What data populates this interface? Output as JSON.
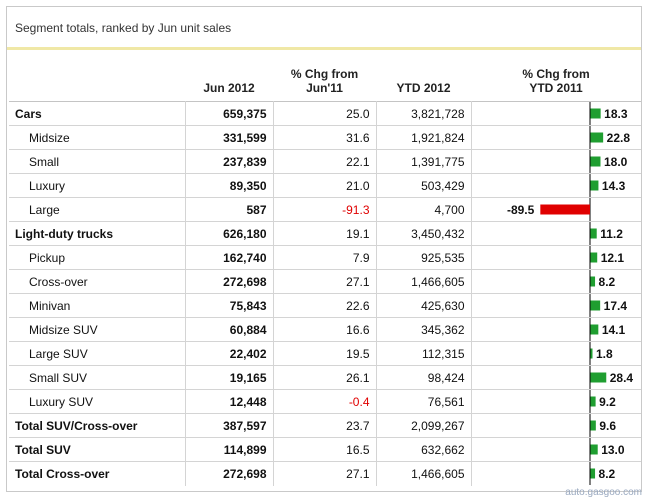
{
  "title": "Segment totals, ranked by Jun unit sales",
  "headers": {
    "jun": "Jun 2012",
    "chg_line1": "% Chg from",
    "chg_line2": "Jun'11",
    "ytd": "YTD 2012",
    "ytd_chg_line1": "% Chg from",
    "ytd_chg_line2": "YTD 2011"
  },
  "colors": {
    "positive": "#1d9a1d",
    "negative": "#e00000",
    "bar_pos": "#1f9e30",
    "bar_neg": "#e00000"
  },
  "watermark": "auto.gasgoo.com",
  "chart_data": {
    "type": "table",
    "columns": [
      "Jun 2012",
      "% Chg from Jun'11",
      "YTD 2012",
      "% Chg from YTD 2011"
    ],
    "rows": [
      {
        "label": "Cars",
        "bold": true,
        "indent": false,
        "jun": "659,375",
        "chg": "25.0",
        "ytd": "3,821,728",
        "ytd_chg": 18.3
      },
      {
        "label": "Midsize",
        "bold": false,
        "indent": true,
        "jun": "331,599",
        "chg": "31.6",
        "ytd": "1,921,824",
        "ytd_chg": 22.8
      },
      {
        "label": "Small",
        "bold": false,
        "indent": true,
        "jun": "237,839",
        "chg": "22.1",
        "ytd": "1,391,775",
        "ytd_chg": 18.0
      },
      {
        "label": "Luxury",
        "bold": false,
        "indent": true,
        "jun": "89,350",
        "chg": "21.0",
        "ytd": "503,429",
        "ytd_chg": 14.3
      },
      {
        "label": "Large",
        "bold": false,
        "indent": true,
        "jun": "587",
        "chg": "-91.3",
        "ytd": "4,700",
        "ytd_chg": -89.5
      },
      {
        "label": "Light-duty trucks",
        "bold": true,
        "indent": false,
        "jun": "626,180",
        "chg": "19.1",
        "ytd": "3,450,432",
        "ytd_chg": 11.2
      },
      {
        "label": "Pickup",
        "bold": false,
        "indent": true,
        "jun": "162,740",
        "chg": "7.9",
        "ytd": "925,535",
        "ytd_chg": 12.1
      },
      {
        "label": "Cross-over",
        "bold": false,
        "indent": true,
        "jun": "272,698",
        "chg": "27.1",
        "ytd": "1,466,605",
        "ytd_chg": 8.2
      },
      {
        "label": "Minivan",
        "bold": false,
        "indent": true,
        "jun": "75,843",
        "chg": "22.6",
        "ytd": "425,630",
        "ytd_chg": 17.4
      },
      {
        "label": "Midsize SUV",
        "bold": false,
        "indent": true,
        "jun": "60,884",
        "chg": "16.6",
        "ytd": "345,362",
        "ytd_chg": 14.1
      },
      {
        "label": "Large SUV",
        "bold": false,
        "indent": true,
        "jun": "22,402",
        "chg": "19.5",
        "ytd": "112,315",
        "ytd_chg": 1.8
      },
      {
        "label": "Small SUV",
        "bold": false,
        "indent": true,
        "jun": "19,165",
        "chg": "26.1",
        "ytd": "98,424",
        "ytd_chg": 28.4
      },
      {
        "label": "Luxury SUV",
        "bold": false,
        "indent": true,
        "jun": "12,448",
        "chg": "-0.4",
        "ytd": "76,561",
        "ytd_chg": 9.2
      },
      {
        "label": "Total SUV/Cross-over",
        "bold": true,
        "indent": false,
        "jun": "387,597",
        "chg": "23.7",
        "ytd": "2,099,267",
        "ytd_chg": 9.6
      },
      {
        "label": "Total SUV",
        "bold": true,
        "indent": false,
        "jun": "114,899",
        "chg": "16.5",
        "ytd": "632,662",
        "ytd_chg": 13.0
      },
      {
        "label": "Total Cross-over",
        "bold": true,
        "indent": false,
        "jun": "272,698",
        "chg": "27.1",
        "ytd": "1,466,605",
        "ytd_chg": 8.2
      }
    ],
    "bar_scale": [
      -100,
      30
    ]
  }
}
